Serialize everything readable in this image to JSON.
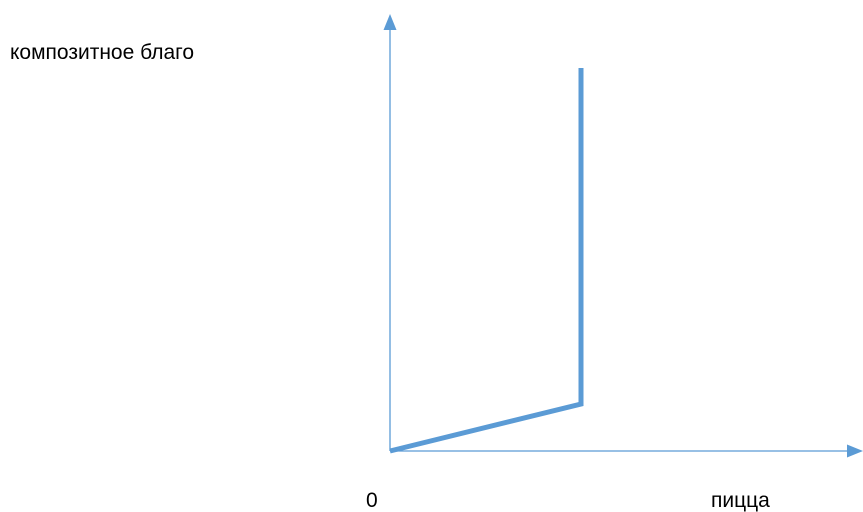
{
  "labels": {
    "y_axis": "композитное благо",
    "x_axis": "пицца",
    "origin": "0"
  },
  "colors": {
    "axis": "#5b9bd5",
    "curve": "#5b9bd5",
    "text": "#000000"
  }
}
